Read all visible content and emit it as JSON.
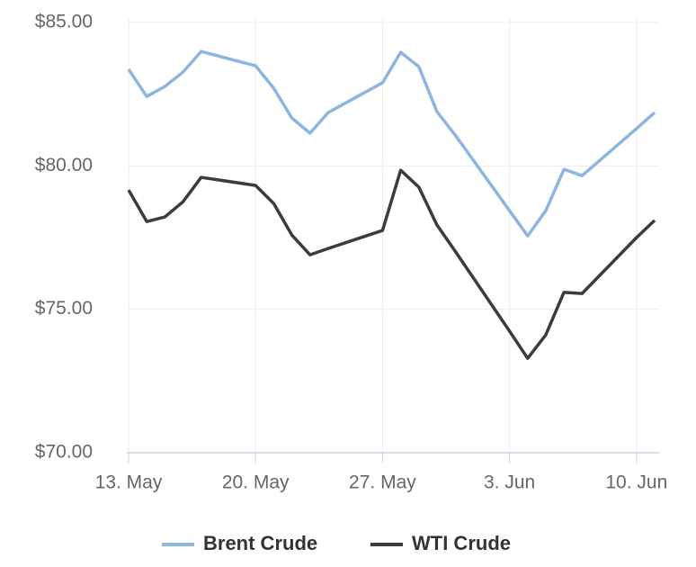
{
  "chart_data": {
    "type": "line",
    "x": [
      "05-13",
      "05-14",
      "05-15",
      "05-16",
      "05-17",
      "05-20",
      "05-21",
      "05-22",
      "05-23",
      "05-24",
      "05-27",
      "05-28",
      "05-29",
      "05-30",
      "05-31",
      "06-03",
      "06-04",
      "06-05",
      "06-06",
      "06-07",
      "06-10",
      "06-11"
    ],
    "series": [
      {
        "name": "Brent Crude",
        "color": "#8db5e2",
        "values": [
          83.37,
          82.42,
          82.77,
          83.27,
          83.99,
          83.49,
          82.71,
          81.67,
          81.14,
          81.86,
          82.9,
          83.96,
          83.46,
          81.89,
          81.08,
          78.44,
          77.56,
          78.44,
          79.88,
          79.66,
          81.3,
          81.86
        ]
      },
      {
        "name": "WTI Crude",
        "color": "#3b3b42",
        "values": [
          79.16,
          78.06,
          78.22,
          78.75,
          79.6,
          79.32,
          78.69,
          77.59,
          76.9,
          77.12,
          77.75,
          79.85,
          79.26,
          77.94,
          77.03,
          74.24,
          73.29,
          74.11,
          75.59,
          75.55,
          77.5,
          78.1
        ]
      }
    ],
    "xlim": [
      "05-13",
      "06-11"
    ],
    "xticks": [
      {
        "value": "05-13",
        "label": "13. May"
      },
      {
        "value": "05-20",
        "label": "20. May"
      },
      {
        "value": "05-27",
        "label": "27. May"
      },
      {
        "value": "06-03",
        "label": "3. Jun"
      },
      {
        "value": "06-10",
        "label": "10. Jun"
      }
    ],
    "ylim": [
      70,
      85
    ],
    "yticks": [
      {
        "value": 70,
        "label": "$70.00"
      },
      {
        "value": 75,
        "label": "$75.00"
      },
      {
        "value": 80,
        "label": "$80.00"
      },
      {
        "value": 85,
        "label": "$85.00"
      }
    ],
    "grid": true,
    "legend": "bottom"
  }
}
